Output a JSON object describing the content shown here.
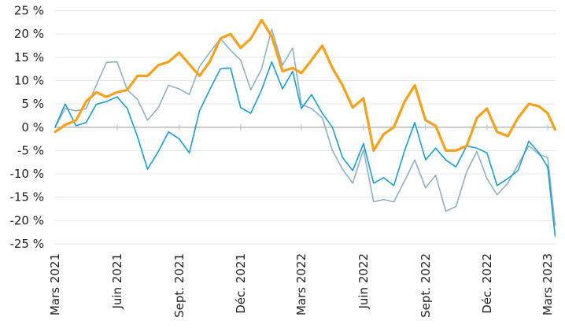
{
  "chart_data": {
    "type": "line",
    "title": "",
    "xlabel": "",
    "ylabel": "",
    "ylim": [
      -25,
      25
    ],
    "y_unit": "%",
    "yticks": [
      25,
      20,
      15,
      10,
      5,
      0,
      -5,
      -10,
      -15,
      -20,
      -25
    ],
    "ytick_labels": [
      "25 %",
      "20 %",
      "15 %",
      "10 %",
      "5 %",
      "0 %",
      "-5 %",
      "-10 %",
      "-15 %",
      "-20 %",
      "-25 %"
    ],
    "xticks": [
      "2021-03-01",
      "2021-06-01",
      "2021-09-01",
      "2021-12-01",
      "2022-03-01",
      "2022-06-01",
      "2022-09-01",
      "2022-12-01",
      "2023-03-01"
    ],
    "xtick_labels": [
      "Mars 2021",
      "Juin 2021",
      "Sept. 2021",
      "Déc. 2021",
      "Mars 2022",
      "Juin 2022",
      "Sept. 2022",
      "Déc. 2022",
      "Mars 2023"
    ],
    "grid": "horizontal",
    "legend": "none",
    "x": [
      "2021-03-01",
      "2021-03-16",
      "2021-04-01",
      "2021-04-16",
      "2021-05-01",
      "2021-05-16",
      "2021-06-01",
      "2021-06-16",
      "2021-07-01",
      "2021-07-16",
      "2021-08-01",
      "2021-08-16",
      "2021-09-01",
      "2021-09-16",
      "2021-10-01",
      "2021-10-16",
      "2021-11-01",
      "2021-11-16",
      "2021-12-01",
      "2021-12-16",
      "2022-01-01",
      "2022-01-16",
      "2022-02-01",
      "2022-02-16",
      "2022-03-01",
      "2022-03-16",
      "2022-04-01",
      "2022-04-16",
      "2022-05-01",
      "2022-05-16",
      "2022-06-01",
      "2022-06-16",
      "2022-07-01",
      "2022-07-16",
      "2022-08-01",
      "2022-08-16",
      "2022-09-01",
      "2022-09-16",
      "2022-10-01",
      "2022-10-16",
      "2022-11-01",
      "2022-11-16",
      "2022-12-01",
      "2022-12-16",
      "2023-01-01",
      "2023-01-16",
      "2023-02-01",
      "2023-02-16",
      "2023-03-01",
      "2023-03-12"
    ],
    "series": [
      {
        "color": "#8fb0c1",
        "width": 1.6,
        "values": [
          0,
          4,
          3.5,
          4,
          9,
          13.9,
          14,
          8,
          6,
          1.5,
          4.2,
          9,
          8.2,
          7,
          13,
          16,
          19,
          16.5,
          14.4,
          8,
          12.5,
          21,
          13.3,
          17,
          4.9,
          4,
          2,
          -5,
          -9,
          -12,
          -4.8,
          -16,
          -15.5,
          -16,
          -11.5,
          -7,
          -13,
          -10.3,
          -18,
          -17,
          -9.5,
          -5.2,
          -11,
          -14.5,
          -12,
          -8,
          -4,
          -5.8,
          -6.5,
          -21
        ]
      },
      {
        "color": "#1a9dd3",
        "width": 1.6,
        "values": [
          0,
          5,
          0.3,
          1,
          4.9,
          5.5,
          6.5,
          4,
          -2,
          -9,
          -5.2,
          -1,
          -2.5,
          -5.5,
          3.5,
          8,
          12.5,
          12.7,
          4.2,
          3,
          8,
          14,
          8.2,
          12,
          4,
          7,
          3,
          0,
          -6.5,
          -9.3,
          -3.5,
          -12,
          -10.8,
          -12.5,
          -5,
          1,
          -7,
          -4.5,
          -7,
          -8.5,
          -4,
          -4.5,
          -5.5,
          -12.5,
          -11,
          -9.3,
          -3,
          -5.5,
          -8.5,
          -23.3
        ]
      },
      {
        "color": "#f7a11a",
        "width": 3.2,
        "values": [
          -1,
          0.5,
          1.5,
          5.5,
          7.5,
          6.5,
          7.5,
          8,
          11,
          11,
          13.3,
          14,
          16,
          13.5,
          11,
          14,
          19,
          20,
          17,
          19,
          23,
          19.5,
          12,
          12.7,
          11.6,
          14.4,
          17.5,
          12.7,
          9,
          4.2,
          6.2,
          -5,
          -1.5,
          0,
          5.5,
          9,
          1.5,
          0.3,
          -5,
          -5,
          -4,
          2,
          4,
          -1,
          -1.9,
          2,
          5,
          4.5,
          3,
          -0.5
        ]
      }
    ]
  }
}
